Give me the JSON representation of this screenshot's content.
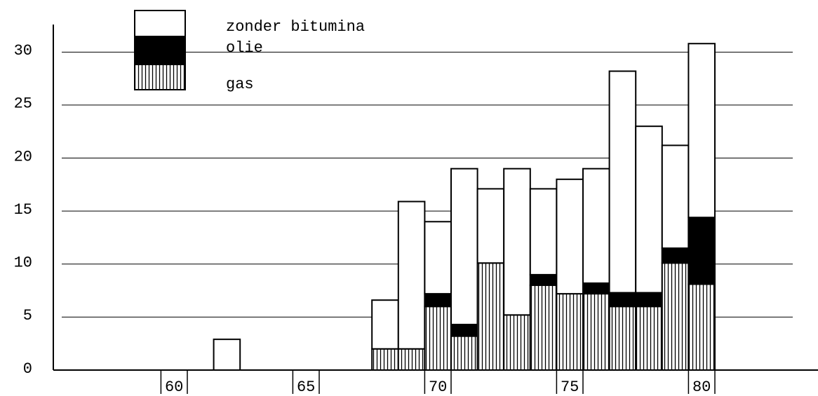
{
  "chart_data": {
    "type": "stacked_bar",
    "categories": [
      null,
      null,
      null,
      null,
      "60",
      null,
      null,
      null,
      null,
      "65",
      null,
      null,
      null,
      null,
      "70",
      null,
      null,
      null,
      null,
      "75",
      null,
      null,
      null,
      null,
      "80",
      null,
      null,
      null,
      null
    ],
    "series": [
      {
        "name": "gas",
        "color": "#000000",
        "hatch": "vertical",
        "values": [
          null,
          null,
          null,
          null,
          null,
          null,
          0,
          null,
          null,
          null,
          null,
          null,
          2,
          2,
          6,
          3.2,
          10.1,
          5.2,
          8,
          7.2,
          7.2,
          6,
          6,
          10.1,
          8.1,
          null,
          null,
          null,
          null
        ]
      },
      {
        "name": "olie",
        "color": "#000000",
        "values": [
          null,
          null,
          null,
          null,
          null,
          null,
          0,
          null,
          null,
          null,
          null,
          null,
          0,
          0,
          1.2,
          1.1,
          0,
          0,
          1,
          0,
          1,
          1.3,
          1.3,
          1.4,
          6.3,
          null,
          null,
          null,
          null
        ]
      },
      {
        "name": "zonder bitumina",
        "color": "#ffffff",
        "values": [
          null,
          null,
          null,
          null,
          null,
          null,
          2.9,
          null,
          null,
          null,
          null,
          null,
          4.6,
          13.9,
          6.8,
          14.7,
          7,
          13.8,
          8.1,
          10.8,
          10.8,
          20.9,
          15.7,
          9.7,
          16.4,
          null,
          null,
          null,
          null
        ]
      }
    ],
    "ylim": [
      0,
      32.6
    ],
    "yticks": [
      0,
      5,
      10,
      15,
      20,
      25,
      30
    ],
    "grid": true
  }
}
